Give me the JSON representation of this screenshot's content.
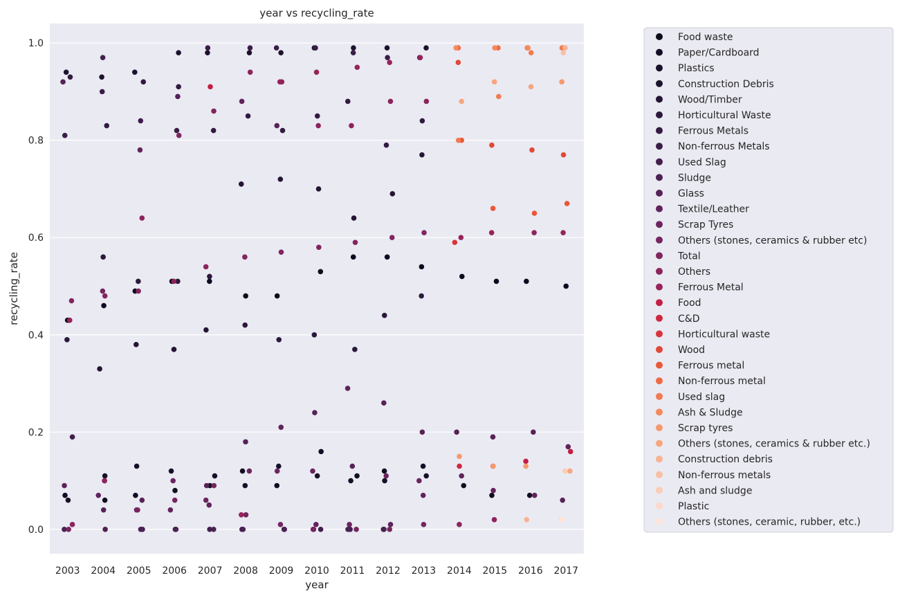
{
  "chart_data": {
    "type": "scatter",
    "title": "year vs recycling_rate",
    "xlabel": "year",
    "ylabel": "recycling_rate",
    "categories": [
      "2003",
      "2004",
      "2005",
      "2006",
      "2007",
      "2008",
      "2009",
      "2010",
      "2011",
      "2012",
      "2013",
      "2014",
      "2015",
      "2016",
      "2017"
    ],
    "ylim": [
      -0.05,
      1.04
    ],
    "yticks": [
      "0.0",
      "0.2",
      "0.4",
      "0.6",
      "0.8",
      "1.0"
    ],
    "grid": true,
    "legend_position": "outside-right",
    "background": "#eaeaf2",
    "series": [
      {
        "name": "Food waste",
        "color": "#0d0a1d",
        "points": [
          [
            2003,
            0.43
          ],
          [
            2004,
            0.46
          ],
          [
            2005,
            0.49
          ],
          [
            2006,
            0.51
          ],
          [
            2007,
            0.51
          ],
          [
            2008,
            0.48
          ],
          [
            2009,
            0.48
          ],
          [
            2010,
            0.53
          ],
          [
            2011,
            0.56
          ],
          [
            2012,
            0.56
          ],
          [
            2013,
            0.54
          ],
          [
            2014,
            0.52
          ],
          [
            2015,
            0.51
          ],
          [
            2016,
            0.51
          ],
          [
            2017,
            0.5
          ]
        ]
      },
      {
        "name": "Paper/Cardboard",
        "color": "#120d22",
        "points": [
          [
            2003,
            0.07
          ],
          [
            2004,
            0.06
          ],
          [
            2005,
            0.07
          ],
          [
            2006,
            0.08
          ],
          [
            2007,
            0.09
          ],
          [
            2008,
            0.12
          ],
          [
            2009,
            0.09
          ],
          [
            2010,
            0.16
          ],
          [
            2011,
            0.11
          ],
          [
            2012,
            0.12
          ],
          [
            2013,
            0.13
          ],
          [
            2014,
            0.09
          ],
          [
            2015,
            0.07
          ],
          [
            2016,
            0.07
          ]
        ]
      },
      {
        "name": "Plastics",
        "color": "#171027",
        "points": [
          [
            2003,
            0.06
          ],
          [
            2004,
            0.11
          ],
          [
            2005,
            0.13
          ],
          [
            2006,
            0.12
          ],
          [
            2007,
            0.11
          ],
          [
            2008,
            0.09
          ],
          [
            2009,
            0.13
          ],
          [
            2010,
            0.11
          ],
          [
            2011,
            0.1
          ],
          [
            2012,
            0.1
          ],
          [
            2013,
            0.11
          ]
        ]
      },
      {
        "name": "Construction Debris",
        "color": "#1d122e",
        "points": [
          [
            2003,
            0.94
          ],
          [
            2004,
            0.93
          ],
          [
            2005,
            0.94
          ],
          [
            2006,
            0.98
          ],
          [
            2007,
            0.98
          ],
          [
            2008,
            0.98
          ],
          [
            2009,
            0.98
          ],
          [
            2010,
            0.99
          ],
          [
            2011,
            0.99
          ],
          [
            2012,
            0.99
          ],
          [
            2013,
            0.99
          ]
        ]
      },
      {
        "name": "Wood/Timber",
        "color": "#241534",
        "points": [
          [
            2003,
            0.43
          ],
          [
            2004,
            0.33
          ],
          [
            2005,
            0.38
          ],
          [
            2006,
            0.37
          ],
          [
            2007,
            0.41
          ],
          [
            2008,
            0.71
          ],
          [
            2009,
            0.72
          ],
          [
            2010,
            0.7
          ],
          [
            2011,
            0.64
          ],
          [
            2012,
            0.69
          ],
          [
            2013,
            0.77
          ]
        ]
      },
      {
        "name": "Horticultural Waste",
        "color": "#2b183b",
        "points": [
          [
            2003,
            0.39
          ],
          [
            2004,
            0.56
          ],
          [
            2005,
            0.51
          ],
          [
            2006,
            0.51
          ],
          [
            2007,
            0.52
          ],
          [
            2008,
            0.42
          ],
          [
            2009,
            0.39
          ],
          [
            2010,
            0.4
          ],
          [
            2011,
            0.37
          ],
          [
            2012,
            0.44
          ],
          [
            2013,
            0.48
          ]
        ]
      },
      {
        "name": "Ferrous Metals",
        "color": "#321a41",
        "points": [
          [
            2003,
            0.93
          ],
          [
            2004,
            0.83
          ],
          [
            2005,
            0.92
          ],
          [
            2006,
            0.91
          ],
          [
            2007,
            0.82
          ],
          [
            2008,
            0.85
          ],
          [
            2009,
            0.82
          ],
          [
            2010,
            0.85
          ],
          [
            2011,
            0.88
          ],
          [
            2012,
            0.79
          ],
          [
            2013,
            0.84
          ]
        ]
      },
      {
        "name": "Non-ferrous Metals",
        "color": "#3a1d47",
        "points": [
          [
            2003,
            0.81
          ],
          [
            2004,
            0.9
          ],
          [
            2005,
            0.84
          ],
          [
            2006,
            0.82
          ],
          [
            2007,
            0.99
          ],
          [
            2008,
            0.99
          ],
          [
            2009,
            0.99
          ],
          [
            2010,
            0.99
          ],
          [
            2011,
            0.98
          ],
          [
            2012,
            0.97
          ],
          [
            2013,
            0.97
          ]
        ]
      },
      {
        "name": "Used Slag",
        "color": "#421f4d",
        "points": [
          [
            2003,
            0.19
          ],
          [
            2004,
            0.97
          ],
          [
            2005,
            0.0
          ],
          [
            2006,
            0.0
          ],
          [
            2007,
            0.0
          ],
          [
            2008,
            0.0
          ],
          [
            2009,
            0.0
          ],
          [
            2010,
            0.0
          ],
          [
            2011,
            0.0
          ],
          [
            2012,
            0.0
          ]
        ]
      },
      {
        "name": "Sludge",
        "color": "#4c2153",
        "points": [
          [
            2003,
            0.0
          ],
          [
            2004,
            0.0
          ],
          [
            2005,
            0.0
          ],
          [
            2006,
            0.0
          ],
          [
            2007,
            0.0
          ],
          [
            2008,
            0.0
          ],
          [
            2009,
            0.0
          ],
          [
            2010,
            0.0
          ],
          [
            2011,
            0.0
          ],
          [
            2012,
            0.0
          ]
        ]
      },
      {
        "name": "Glass",
        "color": "#562257",
        "points": [
          [
            2003,
            0.92
          ],
          [
            2004,
            0.04
          ],
          [
            2005,
            0.06
          ],
          [
            2006,
            0.89
          ],
          [
            2007,
            0.09
          ],
          [
            2008,
            0.18
          ],
          [
            2009,
            0.83
          ],
          [
            2010,
            0.24
          ],
          [
            2011,
            0.13
          ],
          [
            2012,
            0.26
          ],
          [
            2013,
            0.2
          ],
          [
            2014,
            0.2
          ],
          [
            2015,
            0.19
          ],
          [
            2016,
            0.2
          ],
          [
            2017,
            0.06
          ]
        ]
      },
      {
        "name": "Textile/Leather",
        "color": "#60235b",
        "points": [
          [
            2003,
            0.09
          ],
          [
            2004,
            0.07
          ],
          [
            2005,
            0.78
          ],
          [
            2006,
            0.04
          ],
          [
            2007,
            0.05
          ],
          [
            2008,
            0.88
          ],
          [
            2009,
            0.21
          ],
          [
            2010,
            0.01
          ],
          [
            2011,
            0.29
          ],
          [
            2012,
            0.01
          ],
          [
            2013,
            0.07
          ],
          [
            2014,
            0.11
          ],
          [
            2015,
            0.08
          ],
          [
            2016,
            0.07
          ],
          [
            2017,
            0.17
          ]
        ]
      },
      {
        "name": "Scrap Tyres",
        "color": "#6b245e",
        "points": [
          [
            2004,
            0.1
          ],
          [
            2005,
            0.04
          ],
          [
            2006,
            0.1
          ],
          [
            2007,
            0.06
          ],
          [
            2008,
            0.12
          ],
          [
            2009,
            0.12
          ],
          [
            2010,
            0.12
          ],
          [
            2011,
            0.01
          ],
          [
            2012,
            0.11
          ],
          [
            2013,
            0.1
          ]
        ]
      },
      {
        "name": "Others (stones, ceramics & rubber etc)",
        "color": "#76255f",
        "points": [
          [
            2003,
            0.0
          ],
          [
            2004,
            0.49
          ],
          [
            2005,
            0.04
          ],
          [
            2006,
            0.06
          ],
          [
            2007,
            0.09
          ],
          [
            2008,
            0.03
          ],
          [
            2009,
            0.01
          ],
          [
            2010,
            0.0
          ],
          [
            2011,
            0.0
          ],
          [
            2012,
            0.0
          ],
          [
            2013,
            0.01
          ]
        ]
      },
      {
        "name": "Total",
        "color": "#81255f",
        "points": [
          [
            2003,
            0.47
          ],
          [
            2004,
            0.48
          ],
          [
            2005,
            0.49
          ],
          [
            2006,
            0.81
          ],
          [
            2007,
            0.86
          ],
          [
            2008,
            0.56
          ],
          [
            2009,
            0.57
          ],
          [
            2010,
            0.58
          ],
          [
            2011,
            0.59
          ],
          [
            2012,
            0.6
          ],
          [
            2013,
            0.61
          ]
        ]
      },
      {
        "name": "Others",
        "color": "#8c245d",
        "points": [
          [
            2003,
            0.01
          ],
          [
            2004,
            0.1
          ],
          [
            2005,
            0.64
          ],
          [
            2006,
            0.51
          ],
          [
            2007,
            0.54
          ],
          [
            2008,
            0.94
          ],
          [
            2009,
            0.92
          ],
          [
            2010,
            0.83
          ],
          [
            2011,
            0.83
          ],
          [
            2012,
            0.88
          ],
          [
            2013,
            0.88
          ],
          [
            2014,
            0.01
          ],
          [
            2015,
            0.02
          ],
          [
            2016,
            0.61
          ]
        ]
      },
      {
        "name": "Ferrous Metal",
        "color": "#97235a",
        "points": [
          [
            2003,
            0.43
          ],
          [
            2008,
            0.03
          ],
          [
            2009,
            0.92
          ],
          [
            2010,
            0.94
          ],
          [
            2011,
            0.95
          ],
          [
            2012,
            0.96
          ],
          [
            2013,
            0.97
          ],
          [
            2014,
            0.6
          ],
          [
            2015,
            0.61
          ],
          [
            2017,
            0.61
          ]
        ]
      },
      {
        "name": "Food",
        "color": "#c21e46",
        "points": [
          [
            2007,
            0.91
          ],
          [
            2015,
            0.13
          ],
          [
            2016,
            0.14
          ],
          [
            2017,
            0.16
          ]
        ]
      },
      {
        "name": "C&D",
        "color": "#ce2740",
        "points": [
          [
            2014,
            0.13
          ]
        ]
      },
      {
        "name": "Horticultural waste",
        "color": "#d9353b",
        "points": [
          [
            2014,
            0.59
          ]
        ]
      },
      {
        "name": "Wood",
        "color": "#e24737",
        "points": [
          [
            2014,
            0.96
          ],
          [
            2015,
            0.79
          ],
          [
            2016,
            0.78
          ],
          [
            2017,
            0.77
          ]
        ]
      },
      {
        "name": "Ferrous metal",
        "color": "#e95838",
        "points": [
          [
            2014,
            0.8
          ],
          [
            2015,
            0.66
          ],
          [
            2016,
            0.65
          ],
          [
            2017,
            0.67
          ]
        ]
      },
      {
        "name": "Non-ferrous metal",
        "color": "#ef6a43",
        "points": [
          [
            2014,
            0.99
          ],
          [
            2015,
            0.99
          ],
          [
            2016,
            0.99
          ],
          [
            2017,
            0.99
          ]
        ]
      },
      {
        "name": "Used slag",
        "color": "#f27a50",
        "points": [
          [
            2014,
            0.8
          ],
          [
            2015,
            0.89
          ],
          [
            2016,
            0.98
          ],
          [
            2017,
            0.99
          ]
        ]
      },
      {
        "name": "Ash & Sludge",
        "color": "#f48a5e",
        "points": [
          [
            2014,
            0.99
          ],
          [
            2015,
            0.99
          ],
          [
            2016,
            0.99
          ],
          [
            2017,
            0.99
          ]
        ]
      },
      {
        "name": "Scrap tyres",
        "color": "#f6996e",
        "points": [
          [
            2014,
            0.15
          ],
          [
            2015,
            0.13
          ],
          [
            2016,
            0.13
          ],
          [
            2017,
            0.92
          ]
        ]
      },
      {
        "name": "Others (stones, ceramics & rubber etc.)",
        "color": "#f7a67f",
        "points": [
          [
            2014,
            0.88
          ],
          [
            2015,
            0.92
          ],
          [
            2016,
            0.91
          ],
          [
            2017,
            0.12
          ]
        ]
      },
      {
        "name": "Construction debris",
        "color": "#f8b392",
        "points": [
          [
            2016,
            0.02
          ],
          [
            2017,
            0.99
          ]
        ]
      },
      {
        "name": "Non-ferrous metals",
        "color": "#f9c0a5",
        "points": [
          [
            2017,
            0.98
          ]
        ]
      },
      {
        "name": "Ash and sludge",
        "color": "#fbcdb8",
        "points": [
          [
            2017,
            0.12
          ]
        ]
      },
      {
        "name": "Plastic",
        "color": "#fcd9ca",
        "points": [
          [
            2017,
            0.02
          ]
        ]
      },
      {
        "name": "Others (stones, ceramic, rubber, etc.)",
        "color": "#fde5dc",
        "points": [
          [
            2017,
            0.02
          ]
        ]
      }
    ]
  }
}
